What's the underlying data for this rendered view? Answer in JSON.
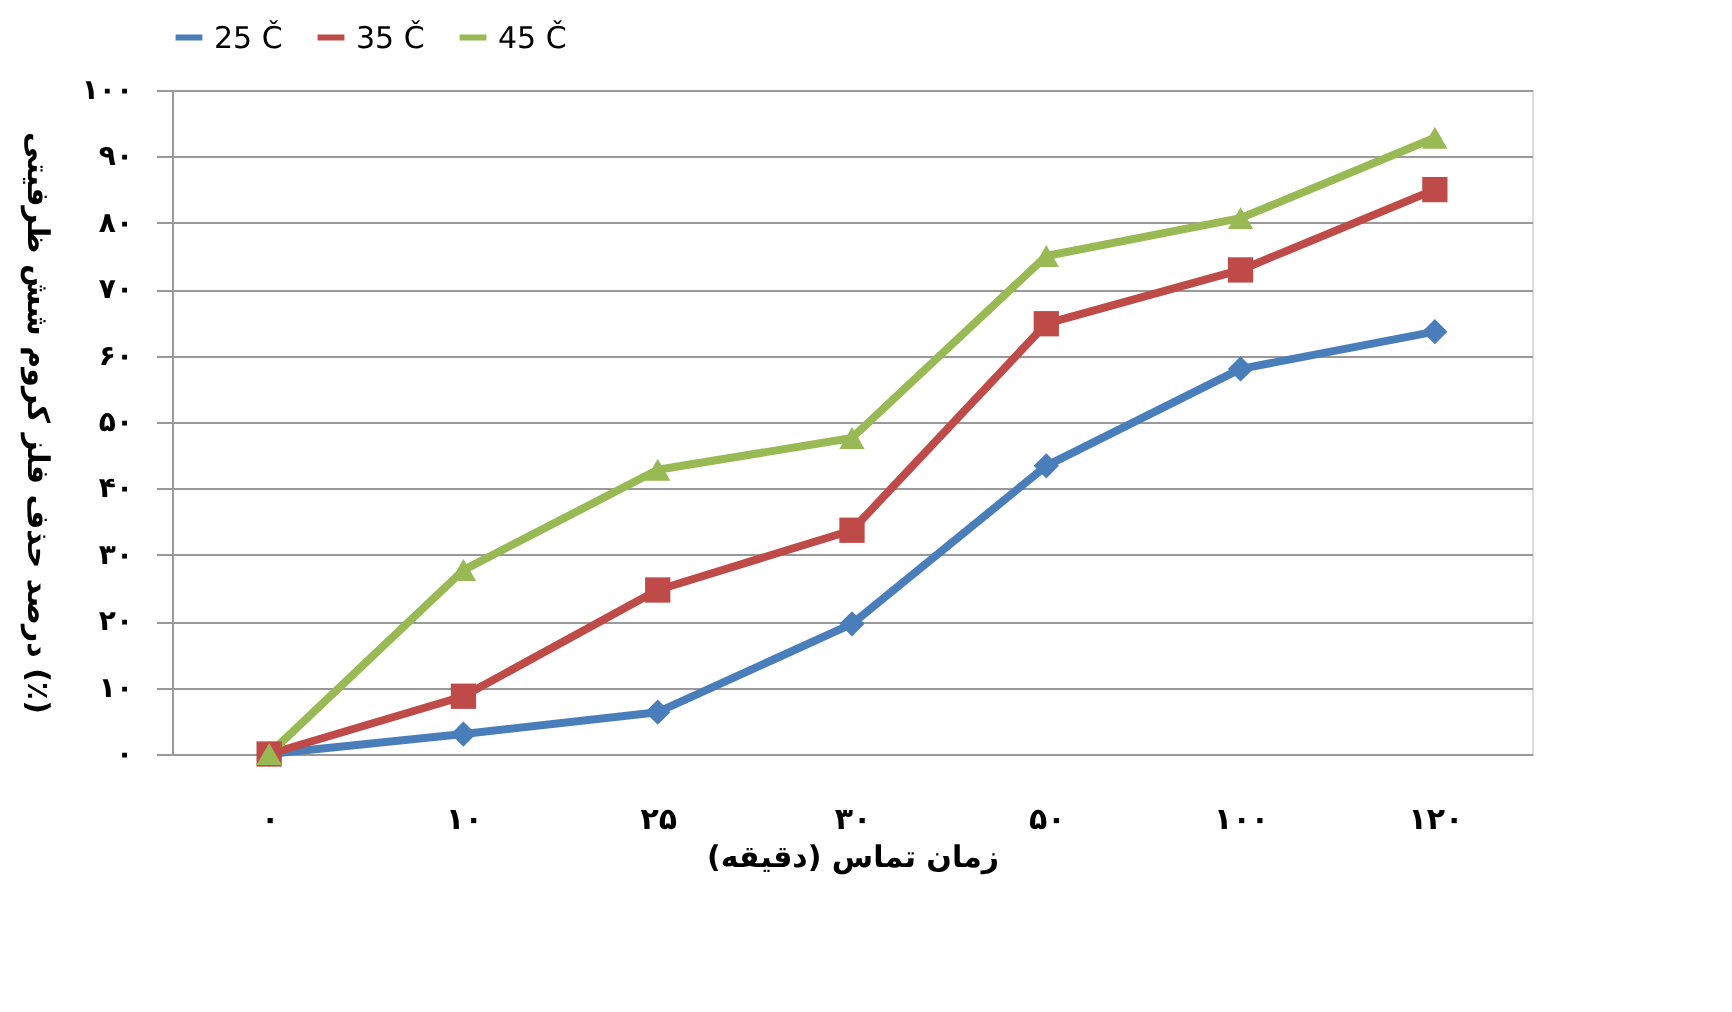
{
  "chart_data": {
    "type": "line",
    "xlabel": "زمان تماس (دقیقه)",
    "ylabel": "درصد حذف فلز کروم شش ظرفیتی (٪)",
    "categories": [
      "۰",
      "۱۰",
      "۲۵",
      "۳۰",
      "۵۰",
      "۱۰۰",
      "۱۲۰"
    ],
    "ylim": [
      0,
      100
    ],
    "yticks": [
      {
        "value": 0,
        "label": "۰"
      },
      {
        "value": 10,
        "label": "۱۰"
      },
      {
        "value": 20,
        "label": "۲۰"
      },
      {
        "value": 30,
        "label": "۳۰"
      },
      {
        "value": 40,
        "label": "۴۰"
      },
      {
        "value": 50,
        "label": "۵۰"
      },
      {
        "value": 60,
        "label": "۶۰"
      },
      {
        "value": 70,
        "label": "۷۰"
      },
      {
        "value": 80,
        "label": "۸۰"
      },
      {
        "value": 90,
        "label": "۹۰"
      },
      {
        "value": 100,
        "label": "۱۰۰"
      }
    ],
    "grid": "y",
    "legend": "top",
    "line_style": "solid",
    "series": [
      {
        "name": "25 Č",
        "color": "#4a7ebb",
        "marker": "diamond",
        "values": [
          0,
          3,
          6.3,
          19.6,
          43.4,
          58,
          63.6
        ]
      },
      {
        "name": "35 Č",
        "color": "#be4b48",
        "marker": "square",
        "values": [
          0,
          8.7,
          24.7,
          33.7,
          64.8,
          72.9,
          85
        ]
      },
      {
        "name": "45 Č",
        "color": "#98b954",
        "marker": "triangle",
        "values": [
          0,
          27.7,
          42.8,
          47.6,
          75,
          80.7,
          92.8
        ]
      }
    ]
  }
}
